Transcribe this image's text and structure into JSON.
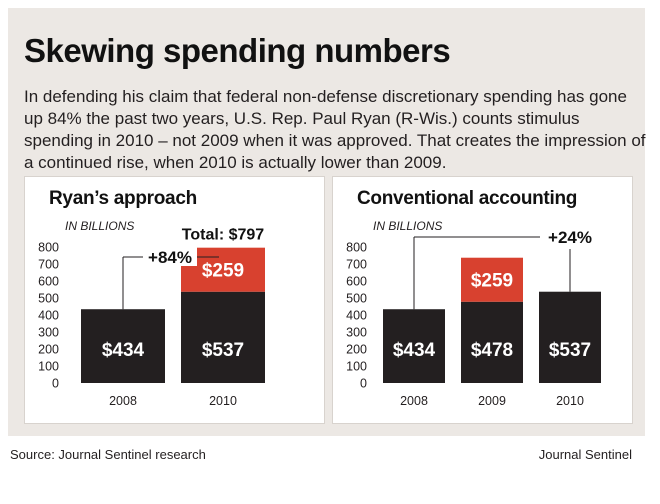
{
  "title": "Skewing spending numbers",
  "intro": "In defending his claim that federal non-defense discretionary spending has gone up 84% the past two years, U.S. Rep. Paul Ryan (R-Wis.) counts stimulus spending in 2010 – not 2009 when it was approved. That creates the impression of a continued rise, when 2010 is actually lower than 2009.",
  "footer": {
    "source": "Source: Journal Sentinel research",
    "credit": "Journal Sentinel"
  },
  "colors": {
    "base": "#231f20",
    "stimulus": "#d8412f",
    "background": "#ece8e4"
  },
  "chart_data": [
    {
      "type": "bar",
      "title": "Ryan’s approach",
      "ylabel": "IN BILLIONS",
      "ylim": [
        0,
        800
      ],
      "yticks": [
        0,
        100,
        200,
        300,
        400,
        500,
        600,
        700,
        800
      ],
      "categories": [
        "2008",
        "2010"
      ],
      "series": [
        {
          "values": [
            434,
            537
          ],
          "labels": [
            "$434",
            "$537"
          ],
          "color": "#231f20"
        },
        {
          "values": [
            0,
            259
          ],
          "labels": [
            "",
            "$259"
          ],
          "color": "#d8412f"
        }
      ],
      "annotations": [
        {
          "text": "+84%",
          "from": "2008",
          "to": "2010"
        },
        {
          "text": "Total: $797",
          "category": "2010"
        }
      ]
    },
    {
      "type": "bar",
      "title": "Conventional accounting",
      "ylabel": "IN BILLIONS",
      "ylim": [
        0,
        800
      ],
      "yticks": [
        0,
        100,
        200,
        300,
        400,
        500,
        600,
        700,
        800
      ],
      "categories": [
        "2008",
        "2009",
        "2010"
      ],
      "series": [
        {
          "values": [
            434,
            478,
            537
          ],
          "labels": [
            "$434",
            "$478",
            "$537"
          ],
          "color": "#231f20"
        },
        {
          "values": [
            0,
            259,
            0
          ],
          "labels": [
            "",
            "$259",
            ""
          ],
          "color": "#d8412f"
        }
      ],
      "annotations": [
        {
          "text": "+24%",
          "from": "2008",
          "to": "2010"
        }
      ]
    }
  ]
}
